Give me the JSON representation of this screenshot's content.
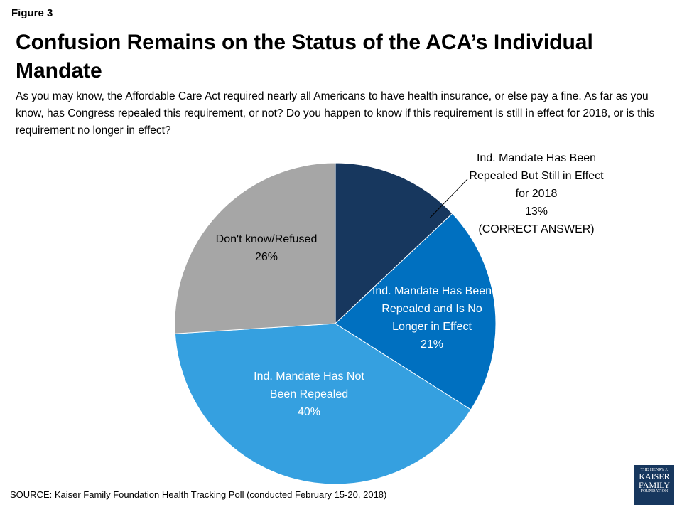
{
  "figure_label": "Figure 3",
  "chart_data": {
    "type": "pie",
    "title": "Confusion Remains on the Status of the ACA’s Individual Mandate",
    "subtitle": "As you may know, the Affordable Care Act required nearly all Americans to have health insurance, or else pay a fine. As far as you know, has Congress repealed this requirement, or not? Do you happen to know if this requirement is still in effect for 2018, or is this requirement no longer in effect?",
    "categories": [
      "Ind. Mandate Has Been Repealed But Still in Effect for 2018",
      "Ind. Mandate Has Been Repealed and Is No Longer in Effect",
      "Ind. Mandate Has Not Been Repealed",
      "Don't know/Refused"
    ],
    "values": [
      13,
      21,
      40,
      26
    ],
    "value_labels": [
      "13%",
      "21%",
      "40%",
      "26%"
    ],
    "colors": [
      "#17375e",
      "#0070c0",
      "#35a0e0",
      "#a6a6a6"
    ],
    "annotation": "(CORRECT ANSWER)"
  },
  "source": "SOURCE: Kaiser Family Foundation Health Tracking Poll (conducted February 15-20, 2018)",
  "logo": [
    "THE HENRY J.",
    "KAISER",
    "FAMILY",
    "FOUNDATION"
  ]
}
